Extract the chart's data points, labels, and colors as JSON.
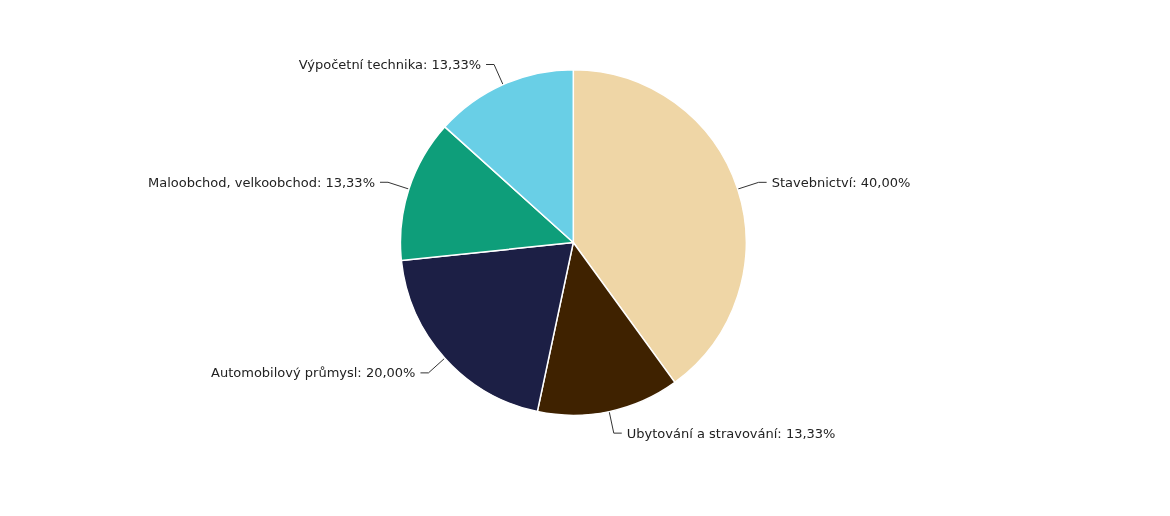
{
  "chart_data": {
    "type": "pie",
    "categories": [
      "Stavebnictví",
      "Ubytování a stravování",
      "Automobilový průmysl",
      "Maloobchod, velkoobchod",
      "Výpočetní technika"
    ],
    "values": [
      40,
      13.33,
      20,
      13.33,
      13.33
    ],
    "value_labels": [
      "40,00%",
      "13,33%",
      "20,00%",
      "13,33%",
      "13,33%"
    ],
    "colors": [
      "#efd6a6",
      "#3f2200",
      "#1c1f45",
      "#0e9e7a",
      "#69cfe6"
    ],
    "legend": false
  }
}
